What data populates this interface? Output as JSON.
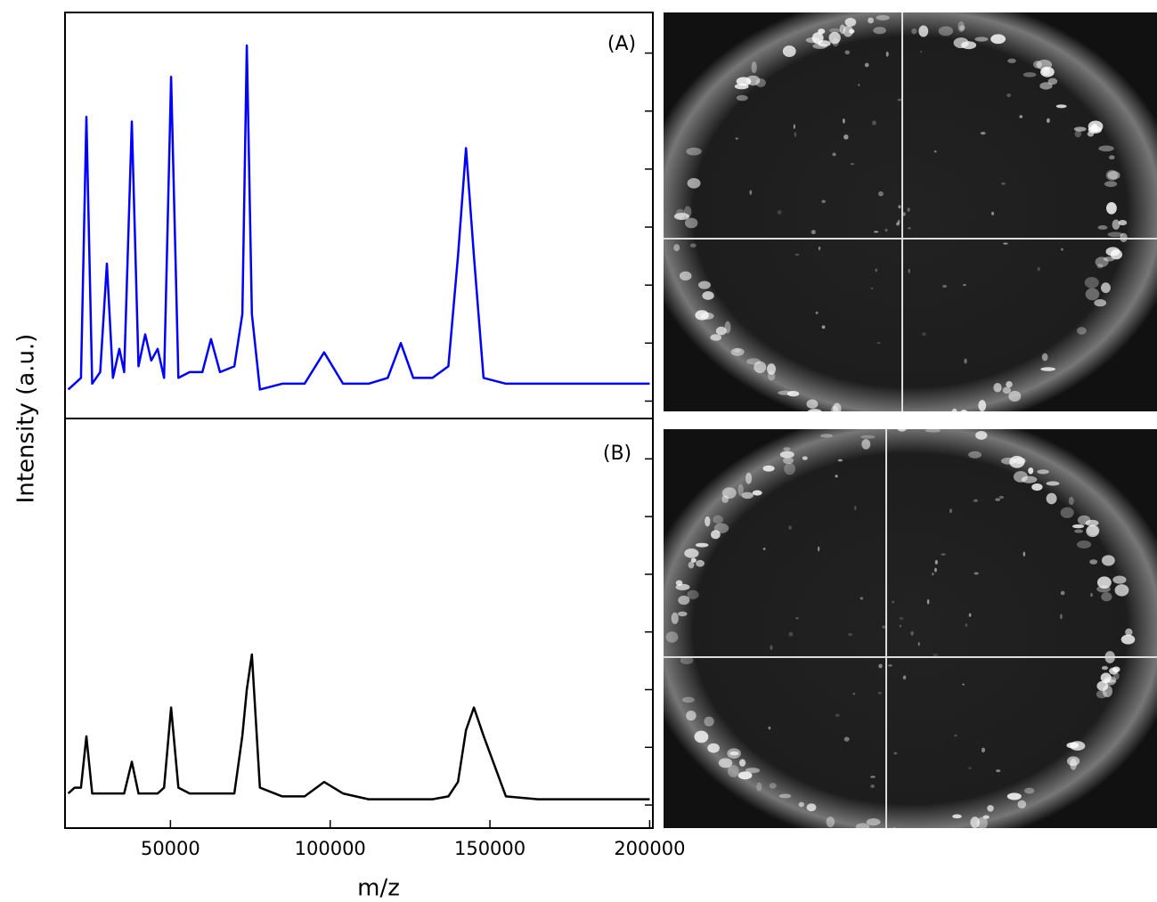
{
  "chart_data": [
    {
      "type": "line",
      "annotation": "(A)",
      "y_label": "Intensity (a.u.)",
      "xlim": [
        17000,
        201000
      ],
      "ylim": [
        -0.3,
        6.7
      ],
      "yticks": [
        0,
        1,
        2,
        3,
        4,
        5,
        6
      ],
      "series": [
        {
          "color": "#0000ff",
          "x": [
            18000,
            20000,
            22000,
            23700,
            25500,
            28000,
            30100,
            32000,
            34000,
            35500,
            37900,
            40000,
            42100,
            44000,
            46000,
            48000,
            50200,
            52500,
            56000,
            60000,
            62700,
            65500,
            70000,
            72500,
            73900,
            75500,
            78000,
            85000,
            92000,
            98100,
            104000,
            112000,
            118000,
            122100,
            126000,
            132000,
            137000,
            140000,
            142500,
            145000,
            148000,
            155000,
            165000,
            175000,
            185000,
            195000,
            200000
          ],
          "values": [
            0.2,
            0.3,
            0.4,
            4.9,
            0.3,
            0.5,
            2.37,
            0.4,
            0.9,
            0.5,
            4.82,
            0.6,
            1.15,
            0.7,
            0.9,
            0.4,
            5.59,
            0.4,
            0.5,
            0.5,
            1.07,
            0.5,
            0.6,
            1.5,
            6.13,
            1.5,
            0.2,
            0.3,
            0.3,
            0.84,
            0.3,
            0.3,
            0.4,
            1.0,
            0.4,
            0.4,
            0.6,
            2.5,
            4.36,
            2.5,
            0.4,
            0.3,
            0.3,
            0.3,
            0.3,
            0.3,
            0.3
          ]
        }
      ]
    },
    {
      "type": "line",
      "annotation": "(B)",
      "x_label": "m/z",
      "xlim": [
        17000,
        201000
      ],
      "ylim": [
        -0.4,
        6.7
      ],
      "yticks": [
        0,
        1,
        2,
        3,
        4,
        5,
        6
      ],
      "xticks": [
        50000,
        100000,
        150000,
        200000
      ],
      "series": [
        {
          "color": "#000000",
          "x": [
            18000,
            20000,
            22000,
            23700,
            25500,
            28000,
            30100,
            32000,
            34000,
            35500,
            37900,
            40000,
            42100,
            44000,
            46000,
            48000,
            50200,
            52500,
            56000,
            60000,
            62700,
            65500,
            70000,
            72500,
            73900,
            75500,
            78000,
            85000,
            92000,
            98100,
            104000,
            112000,
            118000,
            122100,
            126000,
            132000,
            137000,
            140000,
            142500,
            145000,
            148000,
            155000,
            165000,
            175000,
            185000,
            195000,
            200000
          ],
          "values": [
            0.2,
            0.3,
            0.3,
            1.19,
            0.2,
            0.2,
            0.2,
            0.2,
            0.2,
            0.2,
            0.75,
            0.2,
            0.2,
            0.2,
            0.2,
            0.3,
            1.69,
            0.3,
            0.2,
            0.2,
            0.2,
            0.2,
            0.2,
            1.2,
            2.0,
            2.61,
            0.3,
            0.15,
            0.15,
            0.4,
            0.2,
            0.1,
            0.1,
            0.1,
            0.1,
            0.1,
            0.15,
            0.4,
            1.3,
            1.69,
            1.2,
            0.15,
            0.1,
            0.1,
            0.1,
            0.1,
            0.1
          ]
        }
      ]
    }
  ]
}
